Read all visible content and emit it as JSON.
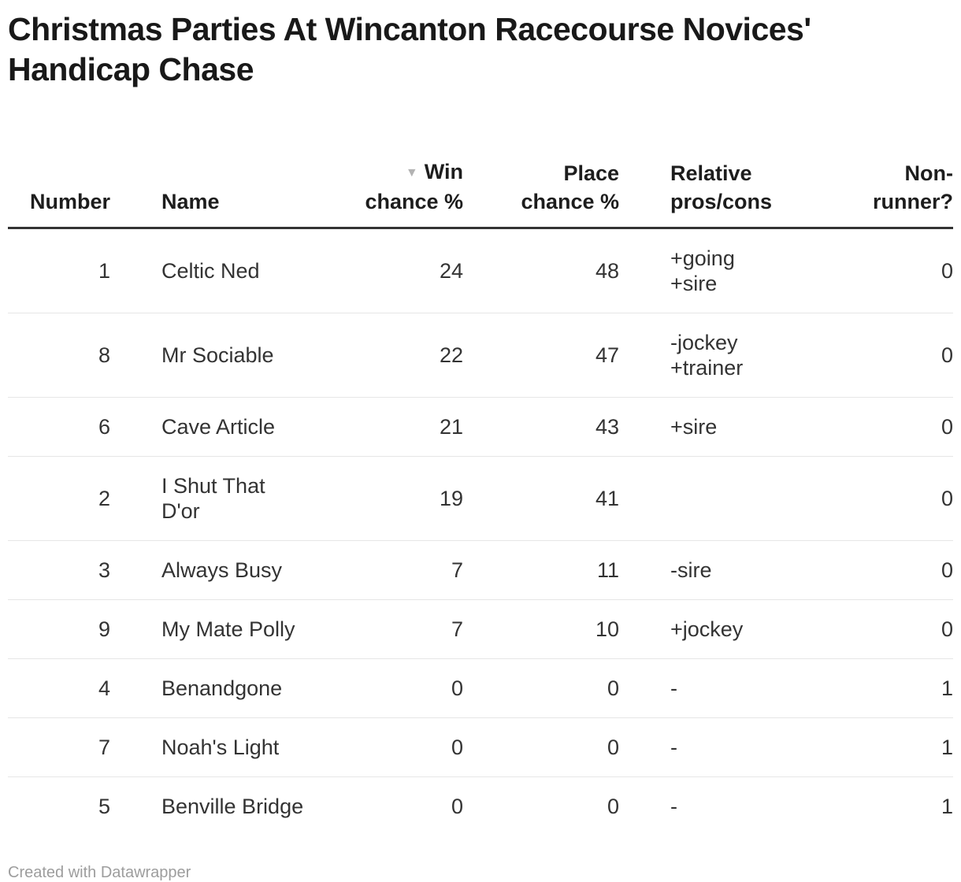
{
  "title": "Christmas Parties At Wincanton Racecourse Novices'\nHandicap Chase",
  "table": {
    "headers": {
      "number": "Number",
      "name": "Name",
      "win": "Win\nchance %",
      "place": "Place\nchance %",
      "pros": "Relative\npros/cons",
      "nonrunner": "Non-\nrunner?"
    },
    "sort_icon": "▼",
    "rows": [
      {
        "number": "1",
        "name": "Celtic Ned",
        "win": "24",
        "place": "48",
        "pros": "+going\n+sire",
        "nonrunner": "0"
      },
      {
        "number": "8",
        "name": "Mr Sociable",
        "win": "22",
        "place": "47",
        "pros": "-jockey\n+trainer",
        "nonrunner": "0"
      },
      {
        "number": "6",
        "name": "Cave Article",
        "win": "21",
        "place": "43",
        "pros": "+sire",
        "nonrunner": "0"
      },
      {
        "number": "2",
        "name": "I Shut That\nD'or",
        "win": "19",
        "place": "41",
        "pros": "",
        "nonrunner": "0"
      },
      {
        "number": "3",
        "name": "Always Busy",
        "win": "7",
        "place": "11",
        "pros": "-sire",
        "nonrunner": "0"
      },
      {
        "number": "9",
        "name": "My Mate Polly",
        "win": "7",
        "place": "10",
        "pros": "+jockey",
        "nonrunner": "0"
      },
      {
        "number": "4",
        "name": "Benandgone",
        "win": "0",
        "place": "0",
        "pros": "-",
        "nonrunner": "1"
      },
      {
        "number": "7",
        "name": "Noah's Light",
        "win": "0",
        "place": "0",
        "pros": "-",
        "nonrunner": "1"
      },
      {
        "number": "5",
        "name": "Benville Bridge",
        "win": "0",
        "place": "0",
        "pros": "-",
        "nonrunner": "1"
      }
    ]
  },
  "footer": {
    "credit": "Created with Datawrapper"
  },
  "colors": {
    "title_text": "#191919",
    "header_text": "#1d1d1d",
    "body_text": "#333333",
    "header_rule": "#333333",
    "row_divider": "#e6e6e6",
    "sort_icon": "#b3b3b3",
    "credit_text": "#9d9d9d"
  },
  "chart_data": {
    "type": "table",
    "title": "Christmas Parties At Wincanton Racecourse Novices' Handicap Chase",
    "columns": [
      "Number",
      "Name",
      "Win chance %",
      "Place chance %",
      "Relative pros/cons",
      "Non-runner?"
    ],
    "rows": [
      [
        1,
        "Celtic Ned",
        24,
        48,
        "+going +sire",
        0
      ],
      [
        8,
        "Mr Sociable",
        22,
        47,
        "-jockey +trainer",
        0
      ],
      [
        6,
        "Cave Article",
        21,
        43,
        "+sire",
        0
      ],
      [
        2,
        "I Shut That D'or",
        19,
        41,
        "",
        0
      ],
      [
        3,
        "Always Busy",
        7,
        11,
        "-sire",
        0
      ],
      [
        9,
        "My Mate Polly",
        7,
        10,
        "+jockey",
        0
      ],
      [
        4,
        "Benandgone",
        0,
        0,
        "-",
        1
      ],
      [
        7,
        "Noah's Light",
        0,
        0,
        "-",
        1
      ],
      [
        5,
        "Benville Bridge",
        0,
        0,
        "-",
        1
      ]
    ],
    "sort": {
      "column": "Win chance %",
      "direction": "desc"
    },
    "credit": "Created with Datawrapper"
  }
}
